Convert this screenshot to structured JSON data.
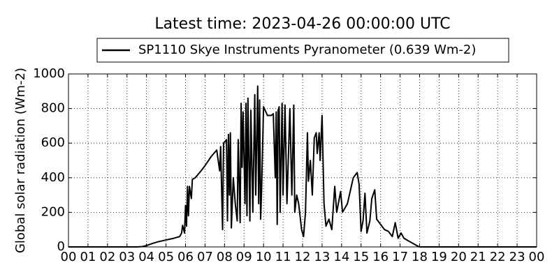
{
  "chart_data": {
    "type": "line",
    "title": "Latest time: 2023-04-26 00:00:00 UTC",
    "y_label": "Global solar radiation (Wm-2)",
    "legend": "upper center",
    "grid": true,
    "xlim": [
      0,
      24
    ],
    "xticks": [
      {
        "value": 0,
        "label": "00"
      },
      {
        "value": 1,
        "label": "01"
      },
      {
        "value": 2,
        "label": "02"
      },
      {
        "value": 3,
        "label": "03"
      },
      {
        "value": 4,
        "label": "04"
      },
      {
        "value": 5,
        "label": "05"
      },
      {
        "value": 6,
        "label": "06"
      },
      {
        "value": 7,
        "label": "07"
      },
      {
        "value": 8,
        "label": "08"
      },
      {
        "value": 9,
        "label": "09"
      },
      {
        "value": 10,
        "label": "10"
      },
      {
        "value": 11,
        "label": "11"
      },
      {
        "value": 12,
        "label": "12"
      },
      {
        "value": 13,
        "label": "13"
      },
      {
        "value": 14,
        "label": "14"
      },
      {
        "value": 15,
        "label": "15"
      },
      {
        "value": 16,
        "label": "16"
      },
      {
        "value": 17,
        "label": "17"
      },
      {
        "value": 18,
        "label": "18"
      },
      {
        "value": 19,
        "label": "19"
      },
      {
        "value": 20,
        "label": "20"
      },
      {
        "value": 21,
        "label": "21"
      },
      {
        "value": 22,
        "label": "22"
      },
      {
        "value": 23,
        "label": "23"
      },
      {
        "value": 24,
        "label": "00"
      }
    ],
    "ylim": [
      0,
      1000
    ],
    "yticks": [
      0,
      200,
      400,
      600,
      800,
      1000
    ],
    "x": [
      0,
      3.5,
      3.8,
      4.0,
      4.3,
      4.6,
      5.0,
      5.4,
      5.7,
      5.8,
      5.85,
      5.95,
      6.0,
      6.05,
      6.1,
      6.15,
      6.2,
      6.3,
      6.35,
      6.5,
      6.8,
      7.0,
      7.3,
      7.6,
      7.75,
      7.8,
      7.9,
      7.95,
      8.1,
      8.15,
      8.2,
      8.25,
      8.3,
      8.35,
      8.45,
      8.55,
      8.65,
      8.7,
      8.8,
      8.85,
      8.9,
      8.95,
      9.05,
      9.1,
      9.15,
      9.2,
      9.3,
      9.35,
      9.45,
      9.55,
      9.6,
      9.7,
      9.75,
      9.8,
      9.85,
      9.9,
      10.0,
      10.2,
      10.4,
      10.5,
      10.6,
      10.65,
      10.7,
      10.75,
      10.8,
      10.85,
      10.95,
      11.0,
      11.1,
      11.2,
      11.35,
      11.45,
      11.55,
      11.6,
      11.7,
      11.8,
      11.95,
      12.05,
      12.15,
      12.25,
      12.3,
      12.4,
      12.5,
      12.6,
      12.7,
      12.75,
      12.85,
      12.9,
      13.0,
      13.1,
      13.2,
      13.35,
      13.5,
      13.65,
      13.75,
      13.95,
      14.05,
      14.3,
      14.6,
      14.8,
      14.9,
      15.0,
      15.1,
      15.2,
      15.3,
      15.45,
      15.55,
      15.7,
      15.8,
      16.0,
      16.2,
      16.4,
      16.6,
      16.75,
      16.9,
      17.05,
      17.2,
      17.5,
      17.9,
      18.0,
      24
    ],
    "series": [
      {
        "name": "SP1110 Skye Instruments Pyranometer (0.639 Wm-2)",
        "color": "#000000",
        "values": [
          0,
          0,
          2,
          8,
          20,
          30,
          40,
          50,
          60,
          80,
          125,
          80,
          240,
          120,
          350,
          180,
          350,
          280,
          390,
          400,
          440,
          470,
          520,
          560,
          440,
          580,
          100,
          600,
          620,
          150,
          650,
          300,
          660,
          110,
          400,
          250,
          150,
          620,
          140,
          830,
          460,
          780,
          250,
          830,
          180,
          860,
          150,
          790,
          200,
          880,
          300,
          930,
          250,
          850,
          160,
          330,
          810,
          760,
          760,
          770,
          400,
          780,
          130,
          790,
          810,
          200,
          830,
          300,
          820,
          250,
          800,
          300,
          820,
          200,
          300,
          250,
          100,
          60,
          200,
          660,
          380,
          500,
          300,
          630,
          660,
          540,
          660,
          500,
          760,
          250,
          120,
          160,
          100,
          350,
          200,
          320,
          200,
          250,
          400,
          430,
          360,
          90,
          150,
          310,
          80,
          150,
          280,
          330,
          160,
          130,
          100,
          90,
          60,
          140,
          50,
          80,
          50,
          30,
          5,
          0,
          0
        ]
      }
    ]
  }
}
